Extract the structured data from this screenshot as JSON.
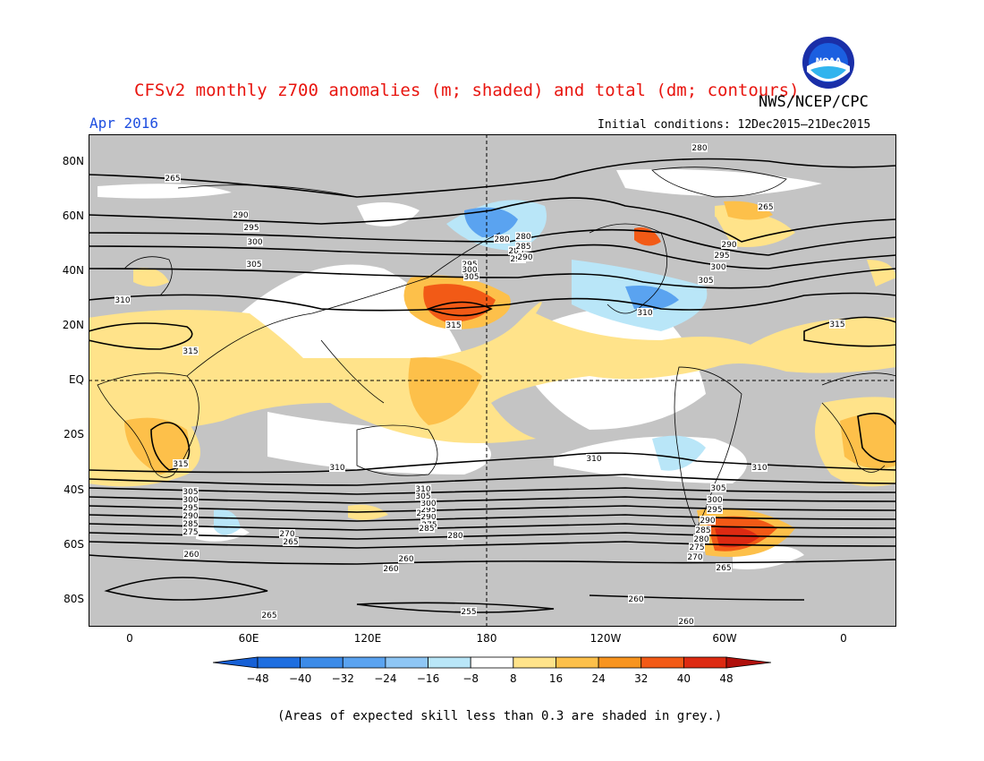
{
  "header": {
    "title": "CFSv2 monthly z700 anomalies (m; shaded) and total (dm; contours)",
    "agency": "NWS/NCEP/CPC",
    "month": "Apr 2016",
    "initial_conditions": "Initial conditions: 12Dec2015–21Dec2015",
    "logo_text": "NOAA"
  },
  "axes": {
    "lat_labels": [
      "80N",
      "60N",
      "40N",
      "20N",
      "EQ",
      "20S",
      "40S",
      "60S",
      "80S"
    ],
    "lon_labels": [
      "0",
      "60E",
      "120E",
      "180",
      "120W",
      "60W",
      "0"
    ]
  },
  "contours": {
    "labels": [
      "280",
      "285",
      "290",
      "265",
      "290",
      "295",
      "300",
      "305",
      "310",
      "315",
      "315",
      "295",
      "300",
      "305",
      "280",
      "285",
      "290",
      "280",
      "290",
      "295",
      "300",
      "305",
      "310",
      "265",
      "315",
      "310",
      "310",
      "310",
      "315",
      "310",
      "305",
      "300",
      "295",
      "290",
      "285",
      "280",
      "275",
      "270",
      "265",
      "305",
      "300",
      "295",
      "290",
      "285",
      "275",
      "270",
      "265",
      "260",
      "260",
      "260",
      "265",
      "255",
      "260",
      "260",
      "265",
      "270",
      "275",
      "280",
      "285",
      "290",
      "295",
      "300",
      "305"
    ],
    "colors": {
      "line": "#000000",
      "label_bg": "#ffffff"
    }
  },
  "colorbar": {
    "ticks": [
      "−48",
      "−40",
      "−32",
      "−24",
      "−16",
      "−8",
      "8",
      "16",
      "24",
      "32",
      "40",
      "48"
    ],
    "colors": [
      "#1e6ee0",
      "#3c8be8",
      "#5aa3f0",
      "#8ec6f5",
      "#b9e6f8",
      "#ffffff",
      "#ffe38a",
      "#fdc04a",
      "#f8941f",
      "#f25a16",
      "#dd2a12"
    ],
    "low_arrow_color": "#1660d6",
    "high_arrow_color": "#b0100c"
  },
  "legend_note": "(Areas of expected skill less than 0.3 are shaded in grey.)",
  "map_colors": {
    "grey_skill": "#c4c4c4",
    "light_yellow": "#ffe38a",
    "orange": "#f8941f",
    "red_orange": "#f25a16",
    "light_blue": "#b9e6f8",
    "blue": "#3c8be8"
  }
}
